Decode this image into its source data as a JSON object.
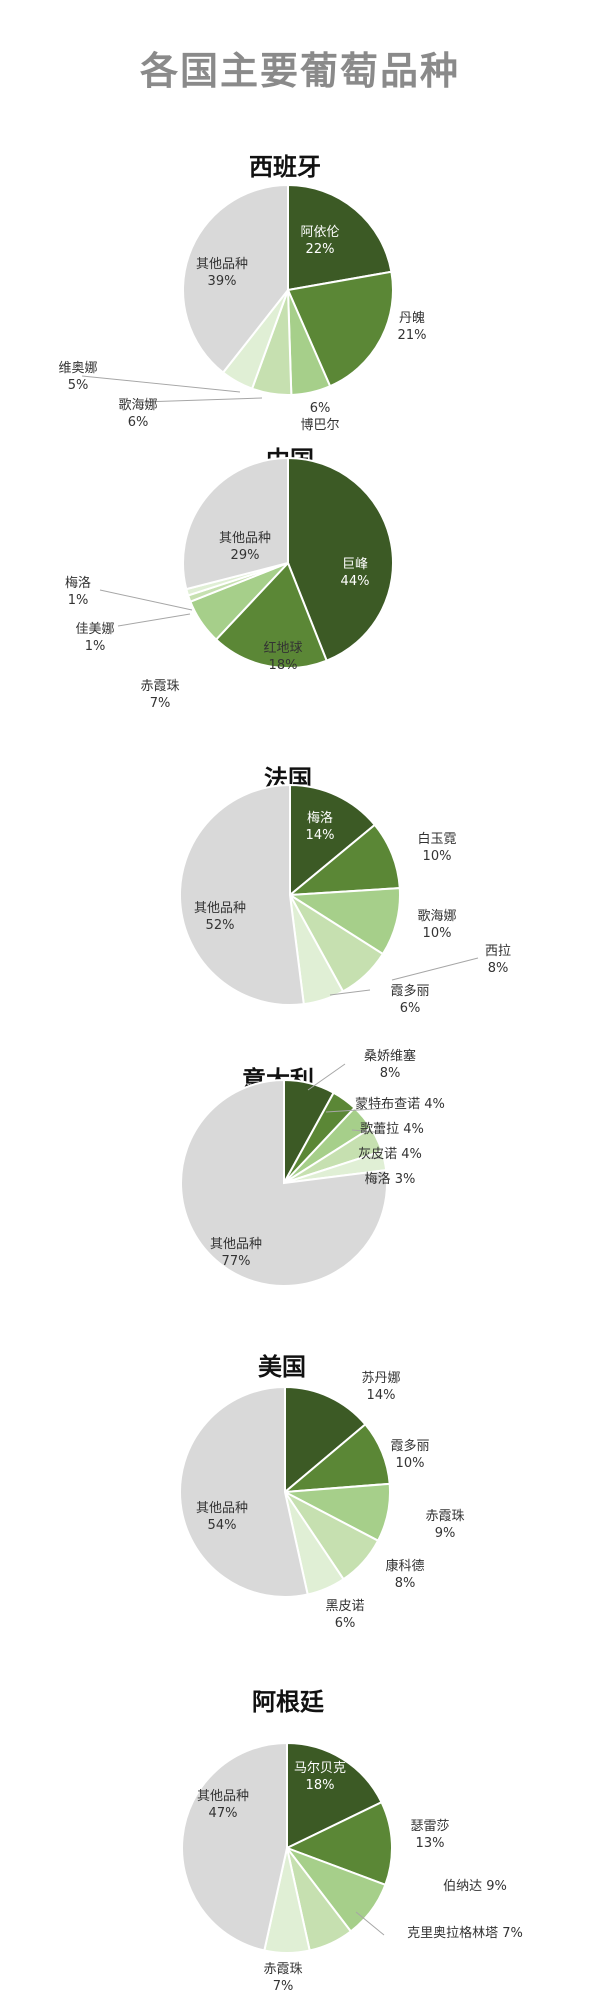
{
  "title": "各国主要葡萄品种",
  "colors": {
    "dark": "#3c5a25",
    "mid": "#5b8736",
    "light1": "#a6cf8a",
    "light2": "#c6e0b0",
    "light3": "#e0efd5",
    "other": "#d9d9d9",
    "title": "#8a8a8a",
    "leader": "#a6a6a6"
  },
  "chart_data": [
    {
      "type": "pie",
      "title": "西班牙",
      "slices": [
        {
          "name": "阿依伦",
          "value": 22
        },
        {
          "name": "丹魄",
          "value": 21
        },
        {
          "name": "博巴尔",
          "value": 6
        },
        {
          "name": "歌海娜",
          "value": 6
        },
        {
          "name": "维奥娜",
          "value": 5
        },
        {
          "name": "其他品种",
          "value": 39
        }
      ]
    },
    {
      "type": "pie",
      "title": "中国",
      "slices": [
        {
          "name": "巨峰",
          "value": 44
        },
        {
          "name": "红地球",
          "value": 18
        },
        {
          "name": "赤霞珠",
          "value": 7
        },
        {
          "name": "佳美娜",
          "value": 1
        },
        {
          "name": "梅洛",
          "value": 1
        },
        {
          "name": "其他品种",
          "value": 29
        }
      ]
    },
    {
      "type": "pie",
      "title": "法国",
      "slices": [
        {
          "name": "梅洛",
          "value": 14
        },
        {
          "name": "白玉霓",
          "value": 10
        },
        {
          "name": "歌海娜",
          "value": 10
        },
        {
          "name": "西拉",
          "value": 8
        },
        {
          "name": "霞多丽",
          "value": 6
        },
        {
          "name": "其他品种",
          "value": 52
        }
      ]
    },
    {
      "type": "pie",
      "title": "意大利",
      "slices": [
        {
          "name": "桑娇维塞",
          "value": 8
        },
        {
          "name": "蒙特布查诺",
          "value": 4
        },
        {
          "name": "歌蕾拉",
          "value": 4
        },
        {
          "name": "灰皮诺",
          "value": 4
        },
        {
          "name": "梅洛",
          "value": 3
        },
        {
          "name": "其他品种",
          "value": 77
        }
      ]
    },
    {
      "type": "pie",
      "title": "美国",
      "slices": [
        {
          "name": "苏丹娜",
          "value": 14
        },
        {
          "name": "霞多丽",
          "value": 10
        },
        {
          "name": "赤霞珠",
          "value": 9
        },
        {
          "name": "康科德",
          "value": 8
        },
        {
          "name": "黑皮诺",
          "value": 6
        },
        {
          "name": "其他品种",
          "value": 54
        }
      ]
    },
    {
      "type": "pie",
      "title": "阿根廷",
      "slices": [
        {
          "name": "马尔贝克",
          "value": 18
        },
        {
          "name": "瑟雷莎",
          "value": 13
        },
        {
          "name": "伯纳达",
          "value": 9
        },
        {
          "name": "克里奥拉格林塔",
          "value": 7
        },
        {
          "name": "赤霞珠",
          "value": 7
        },
        {
          "name": "其他品种",
          "value": 47
        }
      ]
    }
  ]
}
